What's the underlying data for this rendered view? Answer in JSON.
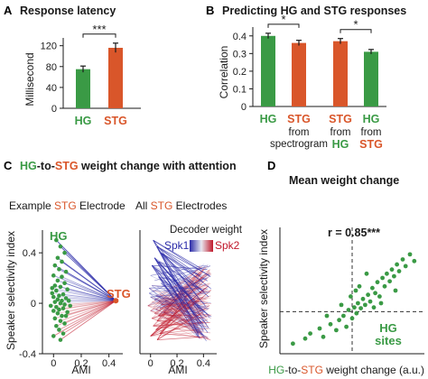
{
  "colors": {
    "green": "#3a9a45",
    "orange": "#d9562a",
    "blue": "#2a2aa8",
    "red": "#c0182a",
    "black": "#1a1a1a"
  },
  "panels": {
    "A": {
      "letter": "A",
      "title": "Response latency"
    },
    "B": {
      "letter": "B",
      "title": "Predicting HG and STG responses"
    },
    "C": {
      "letter": "C",
      "title_part1": "HG",
      "title_part2": "-to-",
      "title_part3": "STG",
      "title_part4": " weight change with attention",
      "left_title_part1": "Example ",
      "left_title_part2": "STG",
      "left_title_part3": " Electrode",
      "right_title_part1": "All ",
      "right_title_part2": "STG",
      "right_title_part3": " Electrodes",
      "hg_label": "HG",
      "stg_label": "STG",
      "decoder_title": "Decoder weight",
      "spk1": "Spk1",
      "spk2": "Spk2"
    },
    "D": {
      "letter": "D",
      "title": "Mean weight change",
      "r_label": "r = 0.85***",
      "sites_line1": "HG",
      "sites_line2": "sites",
      "xlabel_part1": "HG",
      "xlabel_part2": "-to-",
      "xlabel_part3": "STG",
      "xlabel_part4": " weight change (a.u.)"
    }
  },
  "chart_data": [
    {
      "id": "A",
      "type": "bar",
      "title": "Response latency",
      "ylabel": "Millisecond",
      "categories": [
        "HG",
        "STG"
      ],
      "values": [
        75,
        116
      ],
      "errors": [
        6,
        9
      ],
      "ylim": [
        0,
        135
      ],
      "yticks": [
        0,
        40,
        80,
        120
      ],
      "significance": [
        {
          "pair": [
            0,
            1
          ],
          "label": "***"
        }
      ],
      "grid": false
    },
    {
      "id": "B",
      "type": "bar",
      "title": "Predicting HG and STG responses",
      "ylabel": "Correlation",
      "categories": [
        "HG",
        "STG",
        "STG",
        "HG"
      ],
      "category_sublabels": [
        [
          "",
          ""
        ],
        [
          "from",
          "spectrogram"
        ],
        [
          "from",
          "HG"
        ],
        [
          "from",
          "STG"
        ]
      ],
      "values": [
        0.4,
        0.36,
        0.37,
        0.31
      ],
      "errors": [
        0.015,
        0.015,
        0.015,
        0.013
      ],
      "ylim": [
        0,
        0.45
      ],
      "yticks": [
        0,
        0.1,
        0.2,
        0.3,
        0.4
      ],
      "significance": [
        {
          "pair": [
            0,
            1
          ],
          "label": "*"
        },
        {
          "pair": [
            2,
            3
          ],
          "label": "*"
        }
      ],
      "grid": false
    },
    {
      "id": "C-left",
      "type": "scatter",
      "title": "Example STG Electrode",
      "xlabel": "AMI",
      "ylabel": "Speaker selectivity index",
      "xlim": [
        -0.08,
        0.5
      ],
      "ylim": [
        -0.4,
        0.58
      ],
      "xticks": [
        0,
        0.2,
        0.4
      ],
      "yticks": [
        -0.4,
        0,
        0.4
      ],
      "target": {
        "label": "STG",
        "x": 0.45,
        "y": 0.02
      },
      "points": [
        [
          0.02,
          0.5
        ],
        [
          0.05,
          0.45
        ],
        [
          0.08,
          0.4
        ],
        [
          0.03,
          0.36
        ],
        [
          0.06,
          0.33
        ],
        [
          0.01,
          0.3
        ],
        [
          0.04,
          0.27
        ],
        [
          0.09,
          0.25
        ],
        [
          0.0,
          0.22
        ],
        [
          0.06,
          0.21
        ],
        [
          0.03,
          0.18
        ],
        [
          0.08,
          0.16
        ],
        [
          0.01,
          0.14
        ],
        [
          0.05,
          0.13
        ],
        [
          0.1,
          0.11
        ],
        [
          0.02,
          0.1
        ],
        [
          -0.01,
          0.08
        ],
        [
          0.07,
          0.07
        ],
        [
          0.04,
          0.06
        ],
        [
          0.0,
          0.05
        ],
        [
          0.09,
          0.04
        ],
        [
          0.03,
          0.03
        ],
        [
          0.06,
          0.02
        ],
        [
          0.01,
          0.01
        ],
        [
          0.05,
          0.0
        ],
        [
          0.08,
          -0.01
        ],
        [
          -0.02,
          -0.02
        ],
        [
          0.02,
          -0.03
        ],
        [
          0.07,
          -0.04
        ],
        [
          0.04,
          -0.05
        ],
        [
          0.0,
          -0.06
        ],
        [
          0.1,
          -0.07
        ],
        [
          0.03,
          -0.08
        ],
        [
          0.06,
          -0.1
        ],
        [
          0.01,
          -0.12
        ],
        [
          0.05,
          -0.14
        ],
        [
          0.08,
          -0.16
        ],
        [
          0.02,
          -0.18
        ],
        [
          0.04,
          -0.21
        ],
        [
          0.07,
          -0.24
        ],
        [
          0.0,
          -0.26
        ],
        [
          0.05,
          -0.29
        ],
        [
          0.09,
          -0.1
        ],
        [
          0.11,
          0.02
        ],
        [
          -0.01,
          0.12
        ],
        [
          0.12,
          -0.02
        ]
      ]
    },
    {
      "id": "D",
      "type": "scatter",
      "title": "Mean weight change",
      "xlabel": "HG-to-STG weight change (a.u.)",
      "ylabel": "Speaker selectivity index",
      "r": 0.85,
      "xlim": [
        -1,
        1
      ],
      "ylim": [
        -0.5,
        1
      ],
      "points": [
        [
          -0.82,
          -0.38
        ],
        [
          -0.65,
          -0.32
        ],
        [
          -0.58,
          -0.26
        ],
        [
          -0.45,
          -0.2
        ],
        [
          -0.4,
          -0.3
        ],
        [
          -0.3,
          -0.15
        ],
        [
          -0.22,
          -0.22
        ],
        [
          -0.18,
          -0.1
        ],
        [
          -0.12,
          -0.05
        ],
        [
          -0.08,
          -0.18
        ],
        [
          -0.05,
          0.02
        ],
        [
          0.0,
          -0.08
        ],
        [
          0.03,
          0.05
        ],
        [
          0.06,
          -0.02
        ],
        [
          0.08,
          0.1
        ],
        [
          0.12,
          0.04
        ],
        [
          0.15,
          0.15
        ],
        [
          0.18,
          0.08
        ],
        [
          0.22,
          0.2
        ],
        [
          0.25,
          0.12
        ],
        [
          0.28,
          0.28
        ],
        [
          0.32,
          0.22
        ],
        [
          0.35,
          0.35
        ],
        [
          0.38,
          0.18
        ],
        [
          0.42,
          0.4
        ],
        [
          0.45,
          0.3
        ],
        [
          0.48,
          0.45
        ],
        [
          0.52,
          0.36
        ],
        [
          0.55,
          0.5
        ],
        [
          0.58,
          0.42
        ],
        [
          0.62,
          0.56
        ],
        [
          0.65,
          0.48
        ],
        [
          0.7,
          0.62
        ],
        [
          0.74,
          0.54
        ],
        [
          0.8,
          0.68
        ],
        [
          0.86,
          0.6
        ],
        [
          0.05,
          0.25
        ],
        [
          -0.02,
          0.18
        ],
        [
          0.1,
          0.3
        ],
        [
          0.2,
          0.45
        ],
        [
          -0.35,
          -0.05
        ],
        [
          0.3,
          0.05
        ],
        [
          0.4,
          0.1
        ],
        [
          0.6,
          0.25
        ],
        [
          -0.15,
          0.08
        ]
      ]
    }
  ]
}
